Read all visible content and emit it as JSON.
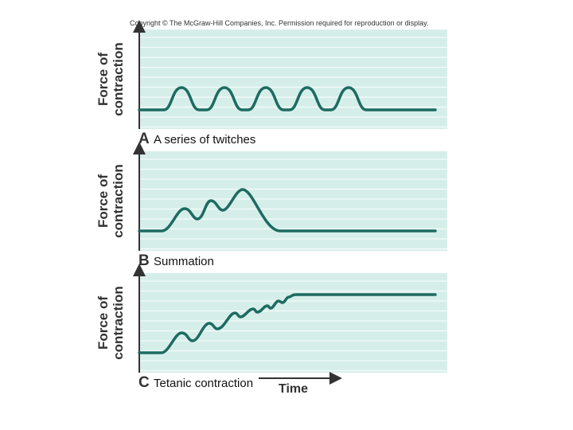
{
  "copyright": "Copyright © The McGraw-Hill Companies, Inc. Permission required for reproduction or display.",
  "panels": [
    {
      "y_label": [
        "Force of",
        "contraction"
      ],
      "letter": "A",
      "caption": "A series of twitches"
    },
    {
      "y_label": [
        "Force of",
        "contraction"
      ],
      "letter": "B",
      "caption": "Summation"
    },
    {
      "y_label": [
        "Force of",
        "contraction"
      ],
      "letter": "C",
      "caption": "Tetanic contraction"
    }
  ],
  "x_label": "Time"
}
